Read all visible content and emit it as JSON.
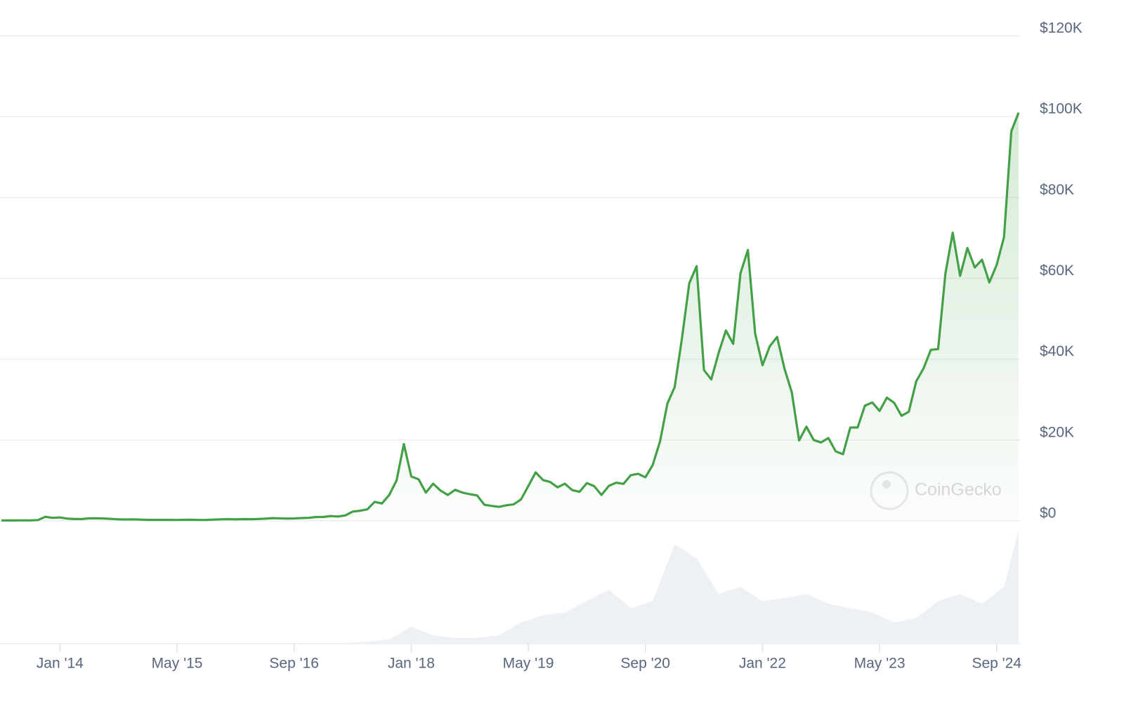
{
  "chart_data": {
    "type": "line",
    "x": [
      "2013-05",
      "2013-06",
      "2013-07",
      "2013-08",
      "2013-09",
      "2013-10",
      "2013-11",
      "2013-12",
      "2014-01",
      "2014-02",
      "2014-03",
      "2014-04",
      "2014-05",
      "2014-06",
      "2014-07",
      "2014-08",
      "2014-09",
      "2014-10",
      "2014-11",
      "2014-12",
      "2015-01",
      "2015-02",
      "2015-03",
      "2015-04",
      "2015-05",
      "2015-06",
      "2015-07",
      "2015-08",
      "2015-09",
      "2015-10",
      "2015-11",
      "2015-12",
      "2016-01",
      "2016-02",
      "2016-03",
      "2016-04",
      "2016-05",
      "2016-06",
      "2016-07",
      "2016-08",
      "2016-09",
      "2016-10",
      "2016-11",
      "2016-12",
      "2017-01",
      "2017-02",
      "2017-03",
      "2017-04",
      "2017-05",
      "2017-06",
      "2017-07",
      "2017-08",
      "2017-09",
      "2017-10",
      "2017-11",
      "2017-12",
      "2018-01",
      "2018-02",
      "2018-03",
      "2018-04",
      "2018-05",
      "2018-06",
      "2018-07",
      "2018-08",
      "2018-09",
      "2018-10",
      "2018-11",
      "2018-12",
      "2019-01",
      "2019-02",
      "2019-03",
      "2019-04",
      "2019-05",
      "2019-06",
      "2019-07",
      "2019-08",
      "2019-09",
      "2019-10",
      "2019-11",
      "2019-12",
      "2020-01",
      "2020-02",
      "2020-03",
      "2020-04",
      "2020-05",
      "2020-06",
      "2020-07",
      "2020-08",
      "2020-09",
      "2020-10",
      "2020-11",
      "2020-12",
      "2021-01",
      "2021-02",
      "2021-03",
      "2021-04",
      "2021-05",
      "2021-06",
      "2021-07",
      "2021-08",
      "2021-09",
      "2021-10",
      "2021-11",
      "2021-12",
      "2022-01",
      "2022-02",
      "2022-03",
      "2022-04",
      "2022-05",
      "2022-06",
      "2022-07",
      "2022-08",
      "2022-09",
      "2022-10",
      "2022-11",
      "2022-12",
      "2023-01",
      "2023-02",
      "2023-03",
      "2023-04",
      "2023-05",
      "2023-06",
      "2023-07",
      "2023-08",
      "2023-09",
      "2023-10",
      "2023-11",
      "2023-12",
      "2024-01",
      "2024-02",
      "2024-03",
      "2024-04",
      "2024-05",
      "2024-06",
      "2024-07",
      "2024-08",
      "2024-09",
      "2024-10",
      "2024-11",
      "2024-12"
    ],
    "series": [
      {
        "color": "#43a047",
        "values": [
          130,
          100,
          105,
          135,
          130,
          200,
          1000,
          750,
          850,
          550,
          460,
          450,
          620,
          640,
          590,
          480,
          390,
          340,
          380,
          320,
          250,
          250,
          245,
          235,
          230,
          260,
          285,
          230,
          235,
          315,
          380,
          430,
          370,
          440,
          415,
          450,
          530,
          670,
          625,
          575,
          610,
          700,
          740,
          960,
          970,
          1190,
          1080,
          1350,
          2300,
          2500,
          2850,
          4700,
          4300,
          6400,
          10000,
          19000,
          11000,
          10300,
          7000,
          9200,
          7500,
          6400,
          7700,
          7000,
          6600,
          6300,
          4000,
          3700,
          3450,
          3850,
          4100,
          5300,
          8600,
          12000,
          10100,
          9600,
          8300,
          9200,
          7600,
          7200,
          9350,
          8600,
          6400,
          8650,
          9450,
          9150,
          11300,
          11650,
          10780,
          13800,
          19700,
          29000,
          33100,
          45200,
          58800,
          63000,
          37300,
          35000,
          41500,
          47100,
          43800,
          61300,
          67000,
          46300,
          38500,
          43200,
          45500,
          37700,
          31800,
          19900,
          23300,
          20000,
          19400,
          20500,
          17200,
          16500,
          23100,
          23100,
          28500,
          29300,
          27200,
          30500,
          29200,
          26000,
          27000,
          34500,
          37700,
          42300,
          42500,
          61200,
          71300,
          60600,
          67500,
          62700,
          64600,
          59000,
          63300,
          70200,
          96400,
          101000
        ]
      }
    ],
    "volume": {
      "x": [
        "2013-07",
        "2013-10",
        "2014-01",
        "2014-04",
        "2014-07",
        "2014-10",
        "2015-01",
        "2015-04",
        "2015-07",
        "2015-10",
        "2016-01",
        "2016-04",
        "2016-07",
        "2016-10",
        "2017-01",
        "2017-04",
        "2017-07",
        "2017-10",
        "2018-01",
        "2018-04",
        "2018-07",
        "2018-10",
        "2019-01",
        "2019-04",
        "2019-07",
        "2019-10",
        "2020-01",
        "2020-04",
        "2020-07",
        "2020-10",
        "2021-01",
        "2021-04",
        "2021-07",
        "2021-10",
        "2022-01",
        "2022-04",
        "2022-07",
        "2022-10",
        "2023-01",
        "2023-04",
        "2023-07",
        "2023-10",
        "2024-01",
        "2024-04",
        "2024-07",
        "2024-10",
        "2024-12"
      ],
      "values": [
        0.02,
        0.05,
        0.1,
        0.08,
        0.06,
        0.07,
        0.1,
        0.08,
        0.07,
        0.1,
        0.1,
        0.1,
        0.15,
        0.12,
        0.3,
        0.5,
        1.5,
        3,
        12,
        6,
        4,
        4,
        6,
        15,
        20,
        22,
        30,
        38,
        25,
        30,
        70,
        60,
        35,
        40,
        30,
        32,
        35,
        28,
        25,
        22,
        15,
        18,
        30,
        35,
        28,
        40,
        80
      ]
    },
    "xlim": [
      "2013-05",
      "2024-12"
    ],
    "xticks": [
      {
        "value": "2014-01",
        "label": "Jan '14"
      },
      {
        "value": "2015-05",
        "label": "May '15"
      },
      {
        "value": "2016-09",
        "label": "Sep '16"
      },
      {
        "value": "2018-01",
        "label": "Jan '18"
      },
      {
        "value": "2019-05",
        "label": "May '19"
      },
      {
        "value": "2020-09",
        "label": "Sep '20"
      },
      {
        "value": "2022-01",
        "label": "Jan '22"
      },
      {
        "value": "2023-05",
        "label": "May '23"
      },
      {
        "value": "2024-09",
        "label": "Sep '24"
      }
    ],
    "ylim": [
      0,
      120000
    ],
    "yticks": [
      {
        "value": 0,
        "label": "$0"
      },
      {
        "value": 20000,
        "label": "$20K"
      },
      {
        "value": 40000,
        "label": "$40K"
      },
      {
        "value": 60000,
        "label": "$60K"
      },
      {
        "value": 80000,
        "label": "$80K"
      },
      {
        "value": 100000,
        "label": "$100K"
      },
      {
        "value": 120000,
        "label": "$120K"
      }
    ],
    "grid": true,
    "watermark": "CoinGecko"
  }
}
